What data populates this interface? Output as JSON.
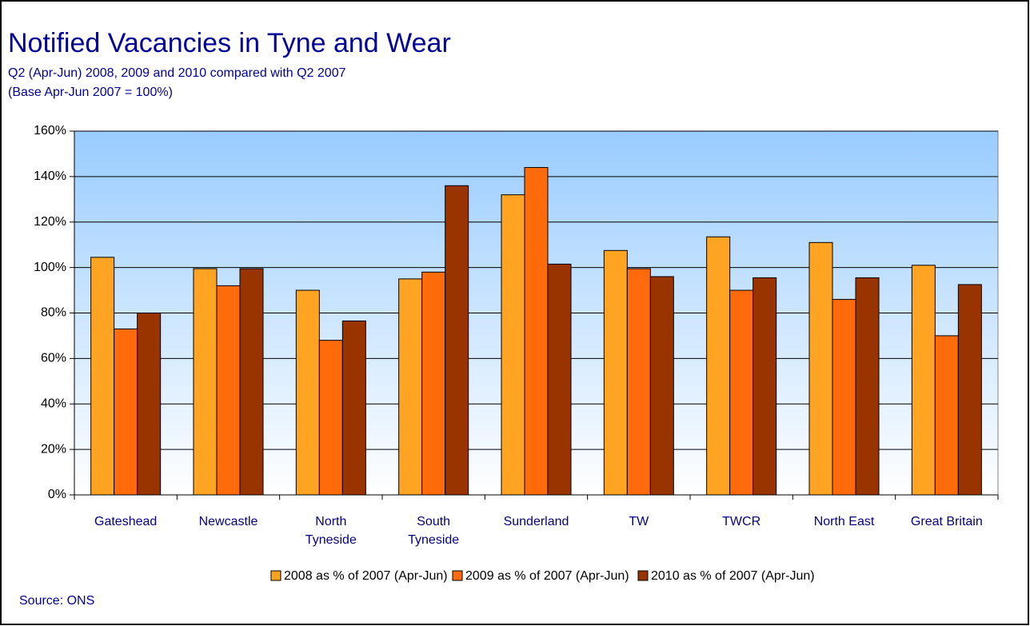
{
  "chart_data": {
    "type": "bar",
    "title": "Notified Vacancies in Tyne and Wear",
    "subtitle": [
      "Q2 (Apr-Jun) 2008, 2009 and 2010 compared with Q2 2007",
      "(Base Apr-Jun 2007 = 100%)"
    ],
    "source": "Source: ONS",
    "categories": [
      "Gateshead",
      "Newcastle",
      "North\nTyneside",
      "South\nTyneside",
      "Sunderland",
      "TW",
      "TWCR",
      "North East",
      "Great Britain"
    ],
    "series": [
      {
        "name": "2008 as % of 2007 (Apr-Jun)",
        "color": "#FFA322",
        "values": [
          104.5,
          99.5,
          90,
          95,
          132,
          107.5,
          113.5,
          111,
          101
        ]
      },
      {
        "name": "2009 as % of 2007 (Apr-Jun)",
        "color": "#FF6A0A",
        "values": [
          73,
          92,
          68,
          98,
          144,
          99.5,
          90,
          86,
          70
        ]
      },
      {
        "name": "2010 as % of 2007 (Apr-Jun)",
        "color": "#993300",
        "values": [
          80,
          99.5,
          76.5,
          136,
          101.5,
          96,
          95.5,
          95.5,
          92.5
        ]
      }
    ],
    "ylim": [
      0,
      160
    ],
    "yticks": [
      {
        "value": 0,
        "label": "0%"
      },
      {
        "value": 20,
        "label": "20%"
      },
      {
        "value": 40,
        "label": "40%"
      },
      {
        "value": 60,
        "label": "60%"
      },
      {
        "value": 80,
        "label": "80%"
      },
      {
        "value": 100,
        "label": "100%"
      },
      {
        "value": 120,
        "label": "120%"
      },
      {
        "value": 140,
        "label": "140%"
      },
      {
        "value": 160,
        "label": "160%"
      }
    ],
    "grid": true
  }
}
